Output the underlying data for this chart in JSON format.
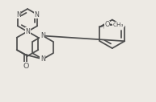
{
  "bg_color": "#edeae4",
  "bond_color": "#4d4d4d",
  "bond_lw": 1.25,
  "font_size": 5.8,
  "fig_w": 1.93,
  "fig_h": 1.27,
  "dpi": 100,
  "xlim": [
    0,
    9.5
  ],
  "ylim": [
    0,
    6.3
  ]
}
